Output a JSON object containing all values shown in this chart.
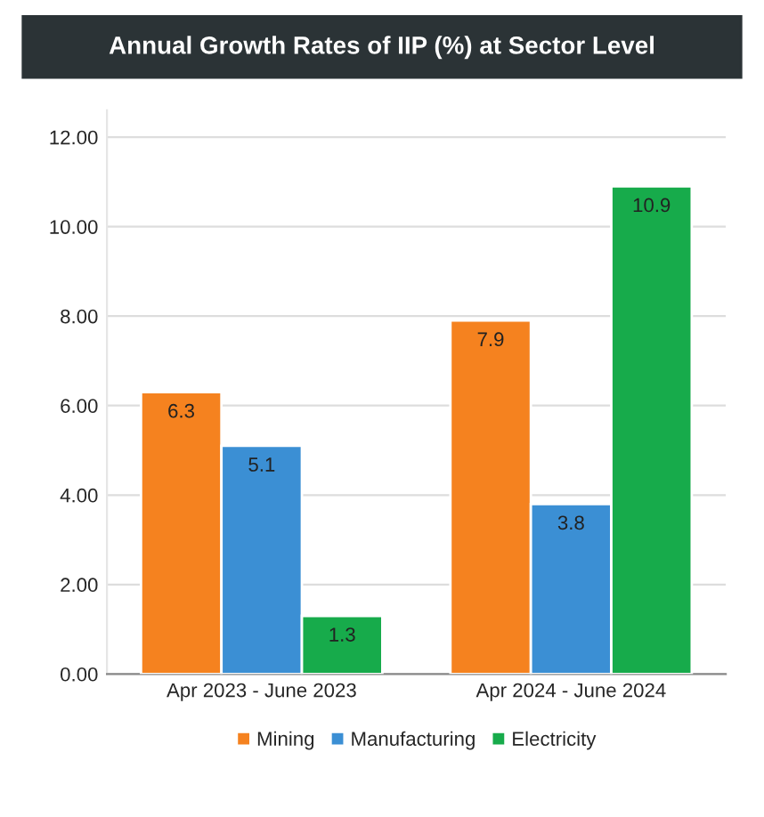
{
  "chart_data": {
    "type": "bar",
    "title": "Annual Growth Rates of IIP (%) at Sector Level",
    "categories": [
      "Apr 2023 - June 2023",
      "Apr 2024 - June 2024"
    ],
    "series": [
      {
        "name": "Mining",
        "color": "#f5821f",
        "values": [
          6.3,
          7.9
        ]
      },
      {
        "name": "Manufacturing",
        "color": "#3b8fd4",
        "values": [
          5.1,
          3.8
        ]
      },
      {
        "name": "Electricity",
        "color": "#17ab4b",
        "values": [
          1.3,
          10.9
        ]
      }
    ],
    "ylim": [
      0,
      12.6
    ],
    "yticks": [
      {
        "value": 0,
        "label": "0.00"
      },
      {
        "value": 2,
        "label": "2.00"
      },
      {
        "value": 4,
        "label": "4.00"
      },
      {
        "value": 6,
        "label": "6.00"
      },
      {
        "value": 8,
        "label": "8.00"
      },
      {
        "value": 10,
        "label": "10.00"
      },
      {
        "value": 12,
        "label": "12.00"
      }
    ],
    "grid": "y",
    "legend": "bottom",
    "data_labels": true
  }
}
